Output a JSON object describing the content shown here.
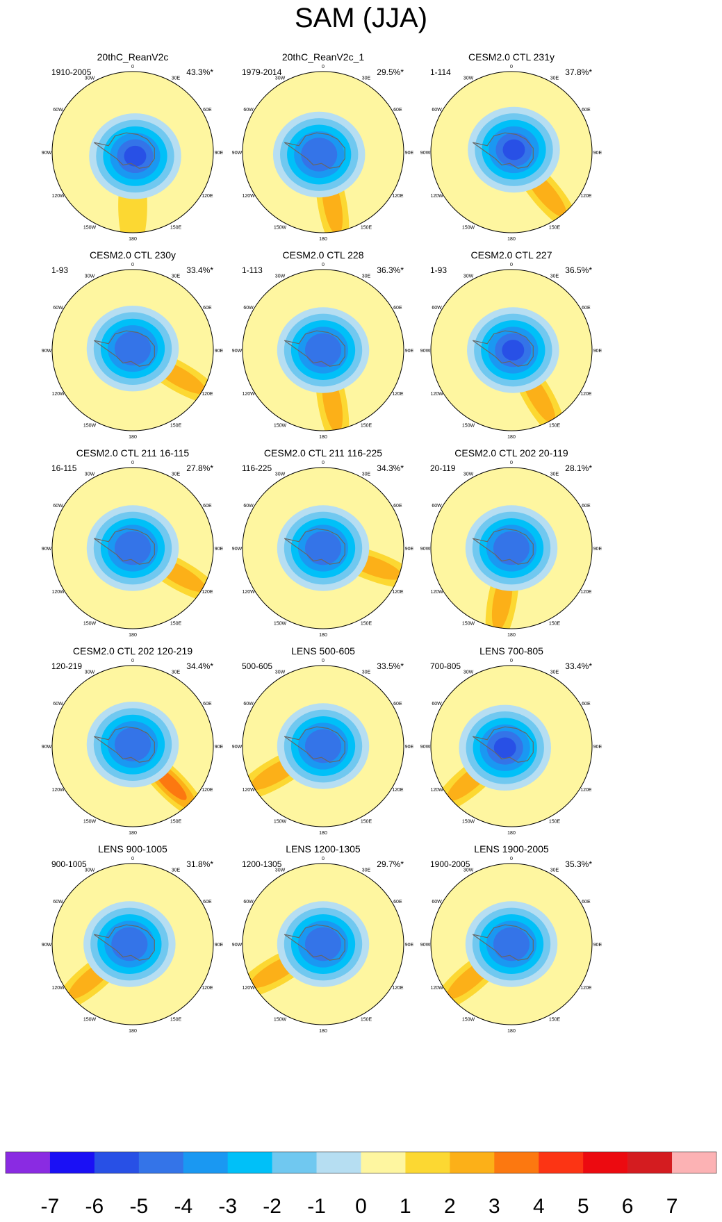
{
  "title": "SAM (JJA)",
  "chart_data": {
    "type": "heatmap",
    "title": "SAM (JJA)",
    "projection": "south polar stereographic",
    "longitude_labels": [
      "0",
      "30E",
      "60E",
      "90E",
      "120E",
      "150E",
      "180",
      "150W",
      "120W",
      "90W",
      "60W",
      "30W"
    ],
    "colorbar": {
      "tick_labels": [
        "-7",
        "-6",
        "-5",
        "-4",
        "-3",
        "-2",
        "-1",
        "0",
        "1",
        "2",
        "3",
        "4",
        "5",
        "6",
        "7"
      ],
      "colors": [
        "#8a2be2",
        "#1a10f5",
        "#2850e6",
        "#3474e8",
        "#1a98f2",
        "#00c0f8",
        "#70c8f0",
        "#b6def2",
        "#fef6a0",
        "#fcd832",
        "#fcb018",
        "#fc7810",
        "#fc3414",
        "#ec0a10",
        "#d41c20",
        "#fcb2b4"
      ]
    },
    "panels": [
      {
        "title": "20thC_ReanV2c",
        "period": "1910-2005",
        "variance": "43.3%*",
        "center_min": -5.5,
        "ring_max": 1.0,
        "ring_lon": 180,
        "cx": 0.03,
        "cy": 0.05
      },
      {
        "title": "20thC_ReanV2c_1",
        "period": "1979-2014",
        "variance": "29.5%*",
        "center_min": -5.0,
        "ring_max": 2.0,
        "ring_lon": 170,
        "cx": -0.05,
        "cy": 0.03
      },
      {
        "title": "CESM2.0 CTL 231y",
        "period": "1-114",
        "variance": "37.8%*",
        "center_min": -5.5,
        "ring_max": 2.0,
        "ring_lon": 140,
        "cx": 0.03,
        "cy": -0.03
      },
      {
        "title": "CESM2.0 CTL 230y",
        "period": "1-93",
        "variance": "33.4%*",
        "center_min": -5.0,
        "ring_max": 2.5,
        "ring_lon": 120,
        "cx": 0.0,
        "cy": -0.02
      },
      {
        "title": "CESM2.0 CTL 228",
        "period": "1-113",
        "variance": "36.3%*",
        "center_min": -5.0,
        "ring_max": 2.5,
        "ring_lon": 170,
        "cx": 0.0,
        "cy": 0.0
      },
      {
        "title": "CESM2.0 CTL 227",
        "period": "1-93",
        "variance": "36.5%*",
        "center_min": -5.5,
        "ring_max": 2.5,
        "ring_lon": 150,
        "cx": 0.02,
        "cy": 0.0
      },
      {
        "title": "CESM2.0 CTL 211 16-115",
        "period": "16-115",
        "variance": "27.8%*",
        "center_min": -5.0,
        "ring_max": 2.5,
        "ring_lon": 120,
        "cx": 0.0,
        "cy": 0.0
      },
      {
        "title": "CESM2.0 CTL 211 116-225",
        "period": "116-225",
        "variance": "34.3%*",
        "center_min": -5.0,
        "ring_max": 2.5,
        "ring_lon": 110,
        "cx": 0.0,
        "cy": 0.0
      },
      {
        "title": "CESM2.0 CTL 202 20-119",
        "period": "20-119",
        "variance": "28.1%*",
        "center_min": -5.0,
        "ring_max": 2.5,
        "ring_lon": 190,
        "cx": 0.0,
        "cy": 0.0
      },
      {
        "title": "CESM2.0 CTL 202 120-219",
        "period": "120-219",
        "variance": "34.4%*",
        "center_min": -5.0,
        "ring_max": 3.0,
        "ring_lon": 135,
        "cx": 0.0,
        "cy": -0.02
      },
      {
        "title": "LENS 500-605",
        "period": "500-605",
        "variance": "33.5%*",
        "center_min": -5.0,
        "ring_max": 2.0,
        "ring_lon": 240,
        "cx": 0.0,
        "cy": 0.0
      },
      {
        "title": "LENS 700-805",
        "period": "700-805",
        "variance": "33.4%*",
        "center_min": -6.0,
        "ring_max": 2.5,
        "ring_lon": 230,
        "cx": -0.08,
        "cy": 0.02
      },
      {
        "title": "LENS 900-1005",
        "period": "900-1005",
        "variance": "31.8%*",
        "center_min": -5.0,
        "ring_max": 2.5,
        "ring_lon": 230,
        "cx": -0.04,
        "cy": 0.0
      },
      {
        "title": "LENS 1200-1305",
        "period": "1200-1305",
        "variance": "29.7%*",
        "center_min": -5.0,
        "ring_max": 2.0,
        "ring_lon": 240,
        "cx": 0.0,
        "cy": 0.0
      },
      {
        "title": "LENS 1900-2005",
        "period": "1900-2005",
        "variance": "35.3%*",
        "center_min": -5.0,
        "ring_max": 2.0,
        "ring_lon": 230,
        "cx": 0.0,
        "cy": 0.0
      }
    ]
  }
}
